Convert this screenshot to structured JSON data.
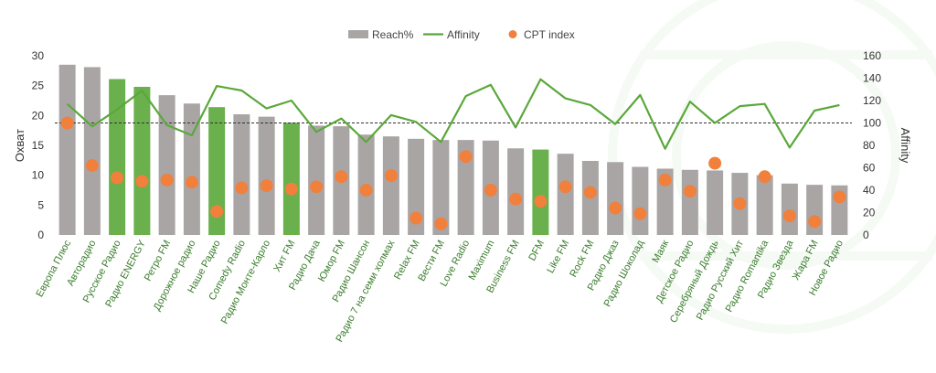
{
  "colors": {
    "bar_gray": "#aaa5a5",
    "bar_green": "#6ab04c",
    "line_green": "#5aa83a",
    "dot_orange": "#f0803c",
    "label_green": "#3a7d2c"
  },
  "chart_data": {
    "type": "bar",
    "title": "",
    "xlabel": "",
    "ylabel": "Охват",
    "y2label": "Affinity",
    "ylim": [
      0,
      30
    ],
    "y2lim": [
      0,
      160
    ],
    "yticks": [
      "0",
      "5",
      "10",
      "15",
      "20",
      "25",
      "30"
    ],
    "y2ticks": [
      "0",
      "20",
      "40",
      "60",
      "80",
      "100",
      "120",
      "140",
      "160"
    ],
    "reference_line": 100,
    "legend": [
      "Reach%",
      "Affinity",
      "CPT index"
    ],
    "legend_position": "top-center",
    "categories": [
      "Европа Плюс",
      "Авторадио",
      "Русское Радио",
      "Радио ENERGY",
      "Ретро FM",
      "Дорожное радио",
      "Наше Радио",
      "Comedy Radio",
      "Радио Монте-Карло",
      "Хит FM",
      "Радио Дача",
      "Юмор FM",
      "Радио Шансон",
      "Радио 7 на семи холмах",
      "Relax FM",
      "Вести FM",
      "Love Radio",
      "Maximum",
      "Business FM",
      "DFM",
      "Like FM",
      "Rock FM",
      "Радио Джаз",
      "Радио Шоколад",
      "Маяк",
      "Детское Радио",
      "Серебряный Дождь",
      "Радио Русский Хит",
      "Радио Romantika",
      "Радио Звезда",
      "Жара FM",
      "Новое Радио"
    ],
    "highlighted": [
      "Русское Радио",
      "Радио ENERGY",
      "Наше Радио",
      "Хит FM",
      "DFM"
    ],
    "series": [
      {
        "name": "Reach%",
        "type": "bar",
        "axis": "left",
        "values": [
          28.5,
          28.1,
          26.1,
          24.8,
          23.4,
          22.0,
          21.4,
          20.2,
          19.8,
          18.8,
          18.3,
          18.2,
          16.8,
          16.5,
          16.1,
          15.9,
          15.9,
          15.8,
          14.5,
          14.3,
          13.6,
          12.4,
          12.2,
          11.4,
          11.1,
          10.9,
          10.8,
          10.4,
          10.0,
          8.6,
          8.4,
          8.3
        ]
      },
      {
        "name": "Affinity",
        "type": "line",
        "axis": "right",
        "values": [
          117,
          97,
          112,
          129,
          98,
          89,
          133,
          129,
          113,
          120,
          92,
          104,
          83,
          107,
          101,
          83,
          124,
          134,
          96,
          139,
          122,
          116,
          99,
          125,
          77,
          119,
          100,
          115,
          117,
          78,
          111,
          116
        ]
      },
      {
        "name": "CPT index",
        "type": "scatter",
        "axis": "right",
        "values": [
          100,
          62,
          51,
          48,
          49,
          47,
          21,
          42,
          44,
          41,
          43,
          52,
          40,
          53,
          15,
          10,
          70,
          40,
          32,
          30,
          43,
          38,
          24,
          19,
          49,
          39,
          64,
          28,
          52,
          17,
          12,
          34
        ]
      }
    ]
  }
}
